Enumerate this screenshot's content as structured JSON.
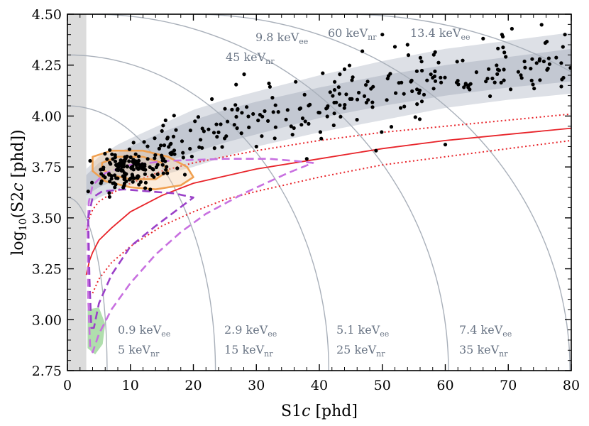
{
  "chart_data": {
    "type": "scatter",
    "xlabel": "S1c [phd]",
    "ylabel": "log10(S2c [phd])",
    "xlim": [
      0,
      80
    ],
    "ylim": [
      2.75,
      4.5
    ],
    "x_ticks": [
      "0",
      "10",
      "20",
      "30",
      "40",
      "50",
      "60",
      "70",
      "80"
    ],
    "y_ticks": [
      "2.75",
      "3.00",
      "3.25",
      "3.50",
      "3.75",
      "4.00",
      "4.25",
      "4.50"
    ],
    "grid": false,
    "threshold_band": {
      "x": [
        0,
        3
      ]
    },
    "energy_contours": [
      {
        "ee": "0.9",
        "nr": "5"
      },
      {
        "ee": "2.9",
        "nr": "15"
      },
      {
        "ee": "5.1",
        "nr": "25"
      },
      {
        "ee": "7.4",
        "nr": "35"
      },
      {
        "ee": "9.8",
        "nr": "45"
      },
      {
        "ee": "13.4",
        "nr": "60"
      }
    ],
    "energy_label_ee_unit": "keV",
    "energy_label_ee_sub": "ee",
    "energy_label_nr_unit": "keV",
    "energy_label_nr_sub": "nr",
    "er_band": {
      "x": [
        3,
        5,
        8,
        10,
        15,
        20,
        25,
        30,
        40,
        50,
        60,
        70,
        80
      ],
      "outer_upper": [
        3.74,
        3.8,
        3.86,
        3.89,
        3.96,
        4.03,
        4.08,
        4.12,
        4.2,
        4.27,
        4.33,
        4.37,
        4.41
      ],
      "inner_upper": [
        3.71,
        3.77,
        3.82,
        3.85,
        3.92,
        3.98,
        4.03,
        4.07,
        4.14,
        4.2,
        4.25,
        4.29,
        4.33
      ],
      "inner_lower": [
        3.61,
        3.65,
        3.69,
        3.72,
        3.77,
        3.82,
        3.87,
        3.91,
        3.99,
        4.05,
        4.1,
        4.14,
        4.17
      ],
      "outer_lower": [
        3.56,
        3.6,
        3.64,
        3.66,
        3.71,
        3.75,
        3.8,
        3.85,
        3.92,
        3.98,
        4.04,
        4.08,
        4.11
      ]
    },
    "nr_median": {
      "x": [
        3,
        3.5,
        4,
        5,
        7,
        10,
        15,
        20,
        30,
        40,
        50,
        60,
        70,
        80
      ],
      "y": [
        3.22,
        3.29,
        3.33,
        3.39,
        3.45,
        3.53,
        3.61,
        3.67,
        3.74,
        3.79,
        3.84,
        3.88,
        3.91,
        3.94
      ]
    },
    "nr_upper": {
      "x": [
        3,
        3.5,
        4,
        5,
        7,
        10,
        15,
        20,
        30,
        40,
        50,
        60,
        70,
        80
      ],
      "y": [
        3.44,
        3.5,
        3.54,
        3.58,
        3.62,
        3.67,
        3.73,
        3.77,
        3.83,
        3.88,
        3.92,
        3.95,
        3.98,
        4.01
      ]
    },
    "nr_lower": {
      "x": [
        4,
        5,
        7,
        10,
        15,
        20,
        25,
        30,
        40,
        50,
        60,
        70,
        80
      ],
      "y": [
        3.13,
        3.2,
        3.28,
        3.36,
        3.46,
        3.53,
        3.59,
        3.63,
        3.7,
        3.76,
        3.8,
        3.84,
        3.88
      ]
    },
    "signal_contours": [
      {
        "name": "",
        "color": "#f0a050",
        "points": [
          [
            4,
            3.8
          ],
          [
            7,
            3.83
          ],
          [
            12,
            3.83
          ],
          [
            16,
            3.8
          ],
          [
            19,
            3.75
          ],
          [
            20,
            3.7
          ],
          [
            18,
            3.66
          ],
          [
            14,
            3.64
          ],
          [
            10,
            3.65
          ],
          [
            6,
            3.68
          ],
          [
            4,
            3.73
          ]
        ]
      },
      {
        "name": "",
        "color": "#f0a050",
        "points": [
          [
            5.5,
            3.77
          ],
          [
            8,
            3.8
          ],
          [
            12,
            3.8
          ],
          [
            15,
            3.77
          ],
          [
            16,
            3.73
          ],
          [
            14,
            3.69
          ],
          [
            10,
            3.69
          ],
          [
            7,
            3.71
          ],
          [
            5.5,
            3.74
          ]
        ]
      },
      {
        "name": "",
        "color": "#c870e0",
        "points": [
          [
            3.2,
            3.44
          ],
          [
            3.4,
            3.58
          ],
          [
            4,
            3.66
          ],
          [
            6,
            3.72
          ],
          [
            10,
            3.76
          ],
          [
            16,
            3.78
          ],
          [
            25,
            3.79
          ],
          [
            32,
            3.79
          ],
          [
            36,
            3.78
          ],
          [
            39,
            3.77
          ],
          [
            35,
            3.72
          ],
          [
            28,
            3.62
          ],
          [
            22,
            3.52
          ],
          [
            18,
            3.43
          ],
          [
            14,
            3.32
          ],
          [
            10,
            3.18
          ],
          [
            7,
            3.05
          ],
          [
            5,
            2.93
          ],
          [
            4,
            2.84
          ],
          [
            3.6,
            2.87
          ],
          [
            3.3,
            3.1
          ],
          [
            3.2,
            3.44
          ]
        ]
      },
      {
        "name": "",
        "color": "#9a40c8",
        "points": [
          [
            3.3,
            3.5
          ],
          [
            4,
            3.6
          ],
          [
            5.5,
            3.63
          ],
          [
            9,
            3.64
          ],
          [
            13,
            3.63
          ],
          [
            17,
            3.62
          ],
          [
            20,
            3.6
          ],
          [
            17,
            3.53
          ],
          [
            14,
            3.46
          ],
          [
            10,
            3.36
          ],
          [
            7,
            3.22
          ],
          [
            5,
            3.08
          ],
          [
            4.2,
            2.96
          ],
          [
            3.8,
            2.96
          ],
          [
            3.5,
            3.2
          ],
          [
            3.3,
            3.5
          ]
        ]
      }
    ],
    "green_blob": [
      [
        3.2,
        3.05
      ],
      [
        5,
        3.06
      ],
      [
        6,
        2.98
      ],
      [
        5.6,
        2.88
      ],
      [
        4.4,
        2.83
      ],
      [
        3.2,
        2.86
      ]
    ],
    "scatter_seed": 7,
    "scatter": {
      "cluster": {
        "n": 150,
        "center_x": 10,
        "center_y": 3.74,
        "spread_x": 5.2,
        "spread_y": 0.055
      },
      "band": {
        "n": 230,
        "x_from": 15,
        "x_to": 80
      },
      "outliers": [
        [
          27,
          4.03
        ],
        [
          54,
          4.35
        ],
        [
          66,
          4.38
        ],
        [
          69,
          4.4
        ],
        [
          75,
          4.28
        ],
        [
          79,
          4.4
        ],
        [
          50,
          4.4
        ],
        [
          44,
          4.23
        ],
        [
          38,
          3.79
        ],
        [
          49,
          3.83
        ],
        [
          60,
          3.86
        ],
        [
          32,
          4.16
        ],
        [
          52,
          4.34
        ],
        [
          3.3,
          3.63
        ],
        [
          3.6,
          3.78
        ],
        [
          24,
          3.92
        ],
        [
          30,
          3.85
        ]
      ]
    }
  }
}
